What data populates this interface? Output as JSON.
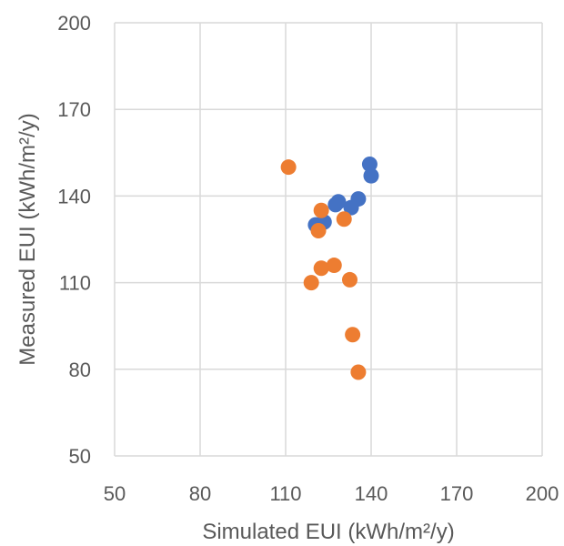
{
  "chart_data": {
    "type": "scatter",
    "title": "",
    "xlabel": "Simulated EUI (kWh/m²/y)",
    "ylabel": "Measured EUI (kWh/m²/y)",
    "xlim": [
      50,
      200
    ],
    "ylim": [
      50,
      200
    ],
    "x_ticks": [
      50,
      80,
      110,
      140,
      170,
      200
    ],
    "y_ticks": [
      50,
      80,
      110,
      140,
      170,
      200
    ],
    "grid": true,
    "legend": "none",
    "series": [
      {
        "color": "#4472c4",
        "points": [
          {
            "x": 139.5,
            "y": 151
          },
          {
            "x": 140,
            "y": 147
          },
          {
            "x": 135.5,
            "y": 139
          },
          {
            "x": 128.5,
            "y": 138
          },
          {
            "x": 127.5,
            "y": 137
          },
          {
            "x": 133,
            "y": 136
          },
          {
            "x": 123.5,
            "y": 131
          },
          {
            "x": 120.5,
            "y": 130
          }
        ]
      },
      {
        "color": "#ed7d31",
        "points": [
          {
            "x": 111,
            "y": 150
          },
          {
            "x": 122.5,
            "y": 135
          },
          {
            "x": 130.5,
            "y": 132
          },
          {
            "x": 121.5,
            "y": 128
          },
          {
            "x": 127,
            "y": 116
          },
          {
            "x": 122.5,
            "y": 115
          },
          {
            "x": 132.5,
            "y": 111
          },
          {
            "x": 119,
            "y": 110
          },
          {
            "x": 133.5,
            "y": 92
          },
          {
            "x": 135.5,
            "y": 79
          }
        ]
      }
    ]
  }
}
